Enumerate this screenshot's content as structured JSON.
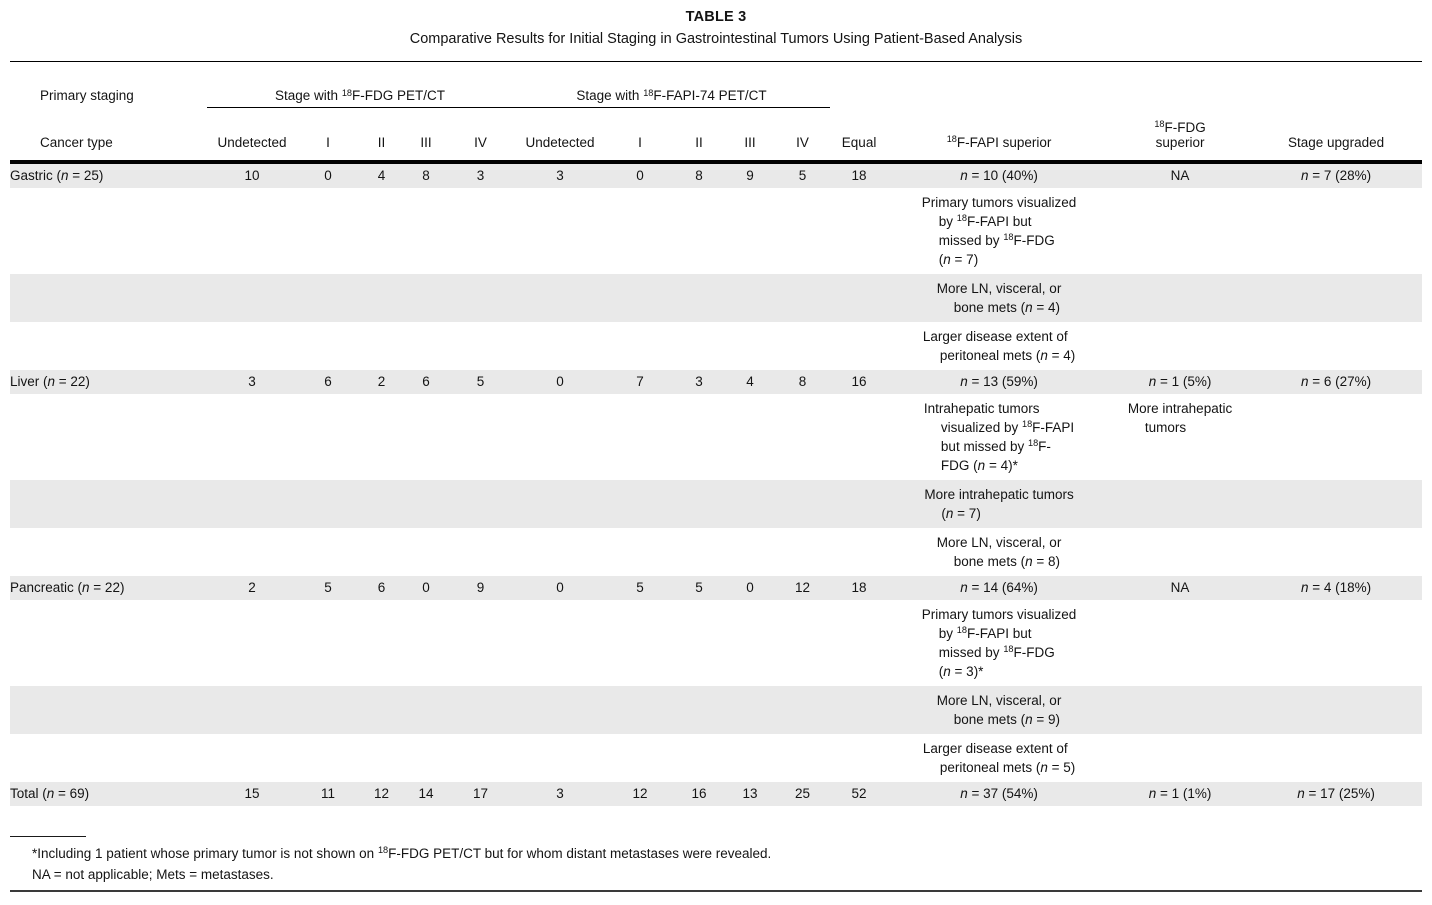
{
  "table": {
    "title": "TABLE 3",
    "subtitle": "Comparative Results for Initial Staging in Gastrointestinal Tumors Using Patient-Based Analysis",
    "header": {
      "primary_staging": "Primary staging",
      "cancer_type": "Cancer type",
      "fdg_group": "Stage with ^18F-FDG PET/CT",
      "fapi_group": "Stage with ^18F-FAPI-74 PET/CT",
      "stage_cols": [
        "Undetected",
        "I",
        "II",
        "III",
        "IV"
      ],
      "equal": "Equal",
      "fapi_superior": "^18F-FAPI superior",
      "fdg_superior": "^18F-FDG\nsuperior",
      "stage_upgraded": "Stage upgraded"
    },
    "rows": [
      {
        "shaded": true,
        "detail": false,
        "cells": [
          "Gastric (*n* = 25)",
          "10",
          "0",
          "4",
          "8",
          "3",
          "3",
          "0",
          "8",
          "9",
          "5",
          "18",
          "*n* = 10 (40%)",
          "NA",
          "*n* = 7 (28%)"
        ]
      },
      {
        "shaded": false,
        "detail": true,
        "cells": [
          "",
          "",
          "",
          "",
          "",
          "",
          "",
          "",
          "",
          "",
          "",
          "",
          [
            "Primary tumors visualized",
            "by ^18F-FAPI but",
            "missed by ^18F-FDG",
            "(*n* = 7)"
          ],
          "",
          ""
        ]
      },
      {
        "shaded": true,
        "detail": true,
        "cells": [
          "",
          "",
          "",
          "",
          "",
          "",
          "",
          "",
          "",
          "",
          "",
          "",
          [
            "More LN, visceral, or",
            "bone mets (*n* = 4)"
          ],
          "",
          ""
        ]
      },
      {
        "shaded": false,
        "detail": true,
        "cells": [
          "",
          "",
          "",
          "",
          "",
          "",
          "",
          "",
          "",
          "",
          "",
          "",
          [
            "Larger disease extent of",
            "peritoneal mets (*n* = 4)"
          ],
          "",
          ""
        ]
      },
      {
        "shaded": true,
        "detail": false,
        "cells": [
          "Liver (*n* = 22)",
          "3",
          "6",
          "2",
          "6",
          "5",
          "0",
          "7",
          "3",
          "4",
          "8",
          "16",
          "*n* = 13 (59%)",
          "*n* = 1 (5%)",
          "*n* = 6 (27%)"
        ]
      },
      {
        "shaded": false,
        "detail": true,
        "cells": [
          "",
          "",
          "",
          "",
          "",
          "",
          "",
          "",
          "",
          "",
          "",
          "",
          [
            "Intrahepatic tumors",
            "visualized by ^18F-FAPI",
            "but missed by ^18F-",
            "FDG (*n* = 4)*"
          ],
          [
            "More intrahepatic",
            "tumors"
          ],
          ""
        ]
      },
      {
        "shaded": true,
        "detail": true,
        "cells": [
          "",
          "",
          "",
          "",
          "",
          "",
          "",
          "",
          "",
          "",
          "",
          "",
          [
            "More intrahepatic tumors",
            "(*n* = 7)"
          ],
          "",
          ""
        ]
      },
      {
        "shaded": false,
        "detail": true,
        "cells": [
          "",
          "",
          "",
          "",
          "",
          "",
          "",
          "",
          "",
          "",
          "",
          "",
          [
            "More LN, visceral, or",
            "bone mets (*n* = 8)"
          ],
          "",
          ""
        ]
      },
      {
        "shaded": true,
        "detail": false,
        "cells": [
          "Pancreatic (*n* = 22)",
          "2",
          "5",
          "6",
          "0",
          "9",
          "0",
          "5",
          "5",
          "0",
          "12",
          "18",
          "*n* = 14 (64%)",
          "NA",
          "*n* = 4 (18%)"
        ]
      },
      {
        "shaded": false,
        "detail": true,
        "cells": [
          "",
          "",
          "",
          "",
          "",
          "",
          "",
          "",
          "",
          "",
          "",
          "",
          [
            "Primary tumors visualized",
            "by ^18F-FAPI but",
            "missed by ^18F-FDG",
            "(*n* = 3)*"
          ],
          "",
          ""
        ]
      },
      {
        "shaded": true,
        "detail": true,
        "cells": [
          "",
          "",
          "",
          "",
          "",
          "",
          "",
          "",
          "",
          "",
          "",
          "",
          [
            "More LN, visceral, or",
            "bone mets (*n* = 9)"
          ],
          "",
          ""
        ]
      },
      {
        "shaded": false,
        "detail": true,
        "cells": [
          "",
          "",
          "",
          "",
          "",
          "",
          "",
          "",
          "",
          "",
          "",
          "",
          [
            "Larger disease extent of",
            "peritoneal mets (*n* = 5)"
          ],
          "",
          ""
        ]
      },
      {
        "shaded": true,
        "detail": false,
        "cells": [
          "Total (*n* = 69)",
          "15",
          "11",
          "12",
          "14",
          "17",
          "3",
          "12",
          "16",
          "13",
          "25",
          "52",
          "*n* = 37 (54%)",
          "*n* = 1 (1%)",
          "*n* = 17 (25%)"
        ]
      }
    ]
  },
  "footnotes": {
    "note1": "*Including 1 patient whose primary tumor is not shown on ^18F-FDG PET/CT but for whom distant metastases were revealed.",
    "note2": "NA = not applicable; Mets = metastases."
  },
  "colors": {
    "row_shade": "#e9e9e9",
    "rule": "#000000"
  }
}
